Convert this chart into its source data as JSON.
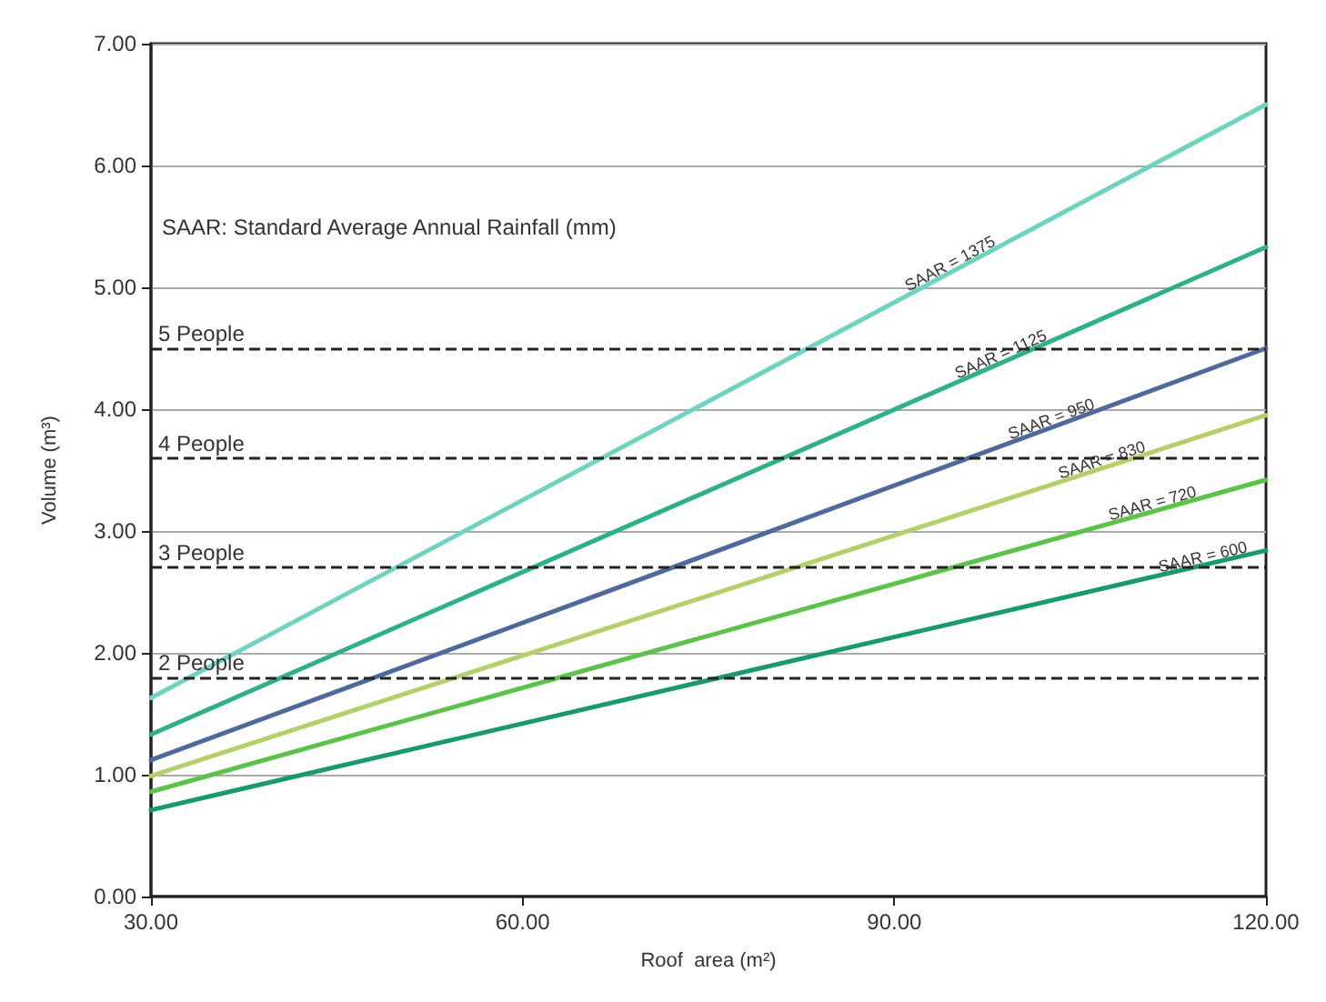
{
  "chart_data": {
    "type": "line",
    "xlabel": "Roof  area (m²)",
    "ylabel": "Volume (m³)",
    "x": [
      30,
      120
    ],
    "series": [
      {
        "name": "SAAR = 1375",
        "color": "#6fd3c0",
        "values": [
          1.63,
          6.5
        ]
      },
      {
        "name": "SAAR = 1125",
        "color": "#2fb08a",
        "values": [
          1.33,
          5.33
        ]
      },
      {
        "name": "SAAR = 950",
        "color": "#4f6a9a",
        "values": [
          1.12,
          4.5
        ]
      },
      {
        "name": "SAAR = 830",
        "color": "#b5cf6a",
        "values": [
          0.99,
          3.95
        ]
      },
      {
        "name": "SAAR = 720",
        "color": "#5cc24a",
        "values": [
          0.86,
          3.42
        ]
      },
      {
        "name": "SAAR = 600",
        "color": "#1a9a6a",
        "values": [
          0.71,
          2.84
        ]
      }
    ],
    "xlim": [
      30,
      120
    ],
    "xticks": [
      {
        "value": 30,
        "label": "30.00"
      },
      {
        "value": 60,
        "label": "60.00"
      },
      {
        "value": 90,
        "label": "90.00"
      },
      {
        "value": 120,
        "label": "120.00"
      }
    ],
    "ylim": [
      0,
      7
    ],
    "yticks": [
      {
        "value": 0,
        "label": "0.00"
      },
      {
        "value": 1,
        "label": "1.00"
      },
      {
        "value": 2,
        "label": "2.00"
      },
      {
        "value": 3,
        "label": "3.00"
      },
      {
        "value": 4,
        "label": "4.00"
      },
      {
        "value": 5,
        "label": "5.00"
      },
      {
        "value": 6,
        "label": "6.00"
      },
      {
        "value": 7,
        "label": "7.00"
      }
    ],
    "ref_lines": [
      {
        "axis": "y",
        "value": 4.5,
        "label": "5 People",
        "color": "#222222",
        "line_style": "dashed"
      },
      {
        "axis": "y",
        "value": 3.6,
        "label": "4 People",
        "color": "#222222",
        "line_style": "dashed"
      },
      {
        "axis": "y",
        "value": 2.7,
        "label": "3 People",
        "color": "#222222",
        "line_style": "dashed"
      },
      {
        "axis": "y",
        "value": 1.8,
        "label": "2 People",
        "color": "#222222",
        "line_style": "dashed"
      }
    ],
    "annotations": [
      "SAAR: Standard Average Annual Rainfall (mm)"
    ],
    "grid": "y",
    "legend": false,
    "marker": "none",
    "line_style": "solid"
  }
}
